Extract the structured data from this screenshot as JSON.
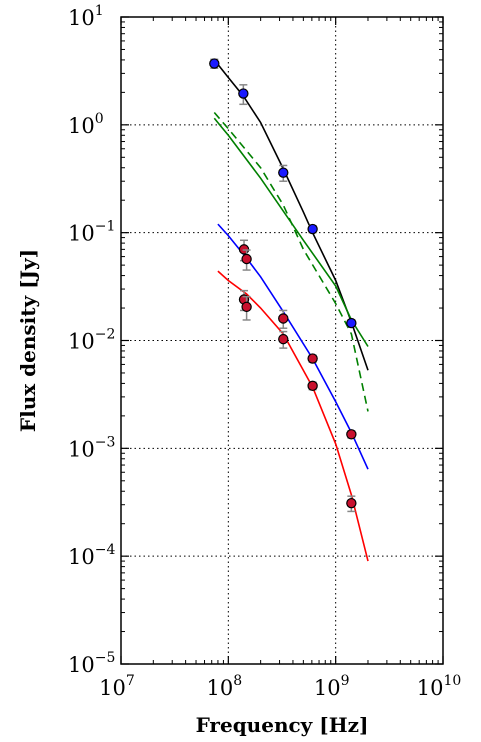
{
  "chart_data": {
    "type": "scatter",
    "xlabel": "Frequency [Hz]",
    "ylabel": "Flux density [Jy]",
    "xscale": "log",
    "yscale": "log",
    "xlim": [
      10000000,
      10000000000
    ],
    "ylim": [
      1e-05,
      10
    ],
    "grid": "major, dotted",
    "x_tick_labels": [
      {
        "value": 10000000,
        "base": "10",
        "exp": "7"
      },
      {
        "value": 100000000,
        "base": "10",
        "exp": "8"
      },
      {
        "value": 1000000000,
        "base": "10",
        "exp": "9"
      },
      {
        "value": 10000000000,
        "base": "10",
        "exp": "10"
      }
    ],
    "y_tick_labels": [
      {
        "value": 1e-05,
        "base": "10",
        "exp": "−5"
      },
      {
        "value": 0.0001,
        "base": "10",
        "exp": "−4"
      },
      {
        "value": 0.001,
        "base": "10",
        "exp": "−3"
      },
      {
        "value": 0.01,
        "base": "10",
        "exp": "−2"
      },
      {
        "value": 0.1,
        "base": "10",
        "exp": "−1"
      },
      {
        "value": 1,
        "base": "10",
        "exp": "0"
      },
      {
        "value": 10,
        "base": "10",
        "exp": "1"
      }
    ],
    "series": [
      {
        "color": "#1a1aff",
        "marker": "circle",
        "points": [
          {
            "x": 74000000,
            "y": 3.7,
            "yerr": 0.35
          },
          {
            "x": 138000000,
            "y": 1.95,
            "yerr": 0.4
          },
          {
            "x": 325000000,
            "y": 0.36,
            "yerr": 0.06
          },
          {
            "x": 610000000,
            "y": 0.108,
            "yerr": 0.008
          },
          {
            "x": 1400000000,
            "y": 0.0145,
            "yerr": 0.001
          }
        ]
      },
      {
        "color": "#c8102e",
        "marker": "circle",
        "points": [
          {
            "x": 140000000,
            "y": 0.024,
            "yerr": 0.005
          },
          {
            "x": 148000000,
            "y": 0.0205,
            "yerr": 0.005
          },
          {
            "x": 325000000,
            "y": 0.0103,
            "yerr": 0.0018
          },
          {
            "x": 610000000,
            "y": 0.0038,
            "yerr": 0.0003
          },
          {
            "x": 1400000000,
            "y": 0.00031,
            "yerr": 5e-05
          }
        ]
      },
      {
        "color": "#c8102e",
        "marker": "circle",
        "points": [
          {
            "x": 140000000,
            "y": 0.07,
            "yerr": 0.015
          },
          {
            "x": 148000000,
            "y": 0.057,
            "yerr": 0.012
          },
          {
            "x": 325000000,
            "y": 0.016,
            "yerr": 0.003
          },
          {
            "x": 610000000,
            "y": 0.0068,
            "yerr": 0.0005
          },
          {
            "x": 1400000000,
            "y": 0.00135,
            "yerr": 0.0001
          }
        ]
      }
    ],
    "curves": [
      {
        "color": "#000000",
        "style": "solid",
        "points": [
          [
            74000000,
            4.0
          ],
          [
            100000000,
            2.75
          ],
          [
            138000000,
            1.85
          ],
          [
            200000000,
            1.05
          ],
          [
            325000000,
            0.39
          ],
          [
            500000000,
            0.155
          ],
          [
            610000000,
            0.1
          ],
          [
            1000000000,
            0.036
          ],
          [
            1400000000,
            0.0148
          ],
          [
            2000000000,
            0.0053
          ]
        ]
      },
      {
        "color": "#008000",
        "style": "solid",
        "points": [
          [
            74000000,
            1.15
          ],
          [
            100000000,
            0.8
          ],
          [
            200000000,
            0.32
          ],
          [
            500000000,
            0.085
          ],
          [
            1000000000,
            0.032
          ],
          [
            1400000000,
            0.0155
          ],
          [
            2000000000,
            0.0088
          ]
        ]
      },
      {
        "color": "#008000",
        "style": "dashed",
        "points": [
          [
            74000000,
            1.3
          ],
          [
            100000000,
            0.92
          ],
          [
            200000000,
            0.4
          ],
          [
            325000000,
            0.18
          ],
          [
            500000000,
            0.07
          ],
          [
            1000000000,
            0.022
          ],
          [
            1400000000,
            0.0115
          ],
          [
            2000000000,
            0.0022
          ]
        ]
      },
      {
        "color": "#0000ff",
        "style": "solid",
        "points": [
          [
            80000000,
            0.12
          ],
          [
            100000000,
            0.094
          ],
          [
            148000000,
            0.058
          ],
          [
            200000000,
            0.039
          ],
          [
            325000000,
            0.0185
          ],
          [
            610000000,
            0.0068
          ],
          [
            1000000000,
            0.0027
          ],
          [
            1400000000,
            0.0014
          ],
          [
            2000000000,
            0.00064
          ]
        ]
      },
      {
        "color": "#ff0000",
        "style": "solid",
        "points": [
          [
            80000000,
            0.044
          ],
          [
            100000000,
            0.036
          ],
          [
            148000000,
            0.027
          ],
          [
            200000000,
            0.02
          ],
          [
            325000000,
            0.0115
          ],
          [
            610000000,
            0.0037
          ],
          [
            1000000000,
            0.0011
          ],
          [
            1400000000,
            0.00037
          ],
          [
            2000000000,
            9e-05
          ]
        ]
      }
    ]
  }
}
